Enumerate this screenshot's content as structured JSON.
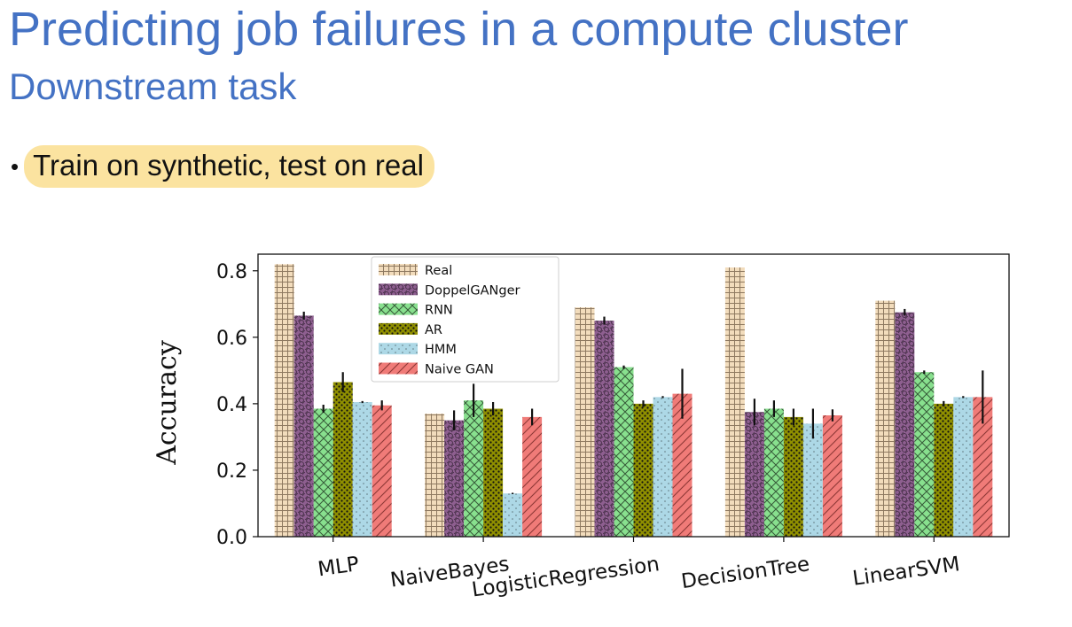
{
  "slide": {
    "title": "Predicting job failures in a compute cluster",
    "subtitle": "Downstream task",
    "bullet": "Train on synthetic, test on real"
  },
  "chart_data": {
    "type": "bar",
    "ylabel": "Accuracy",
    "xlabel": "",
    "ylim": [
      0.0,
      0.85
    ],
    "yticks": [
      "0.0",
      "0.2",
      "0.4",
      "0.6",
      "0.8"
    ],
    "legend_position": "top-left",
    "categories": [
      "MLP",
      "NaiveBayes",
      "LogisticRegression",
      "DecisionTree",
      "LinearSVM"
    ],
    "series": [
      {
        "name": "Real",
        "color": "#f2dcbc",
        "pattern": "grid",
        "values": [
          0.82,
          0.37,
          0.69,
          0.81,
          0.71
        ],
        "errors": [
          0,
          0,
          0,
          0,
          0
        ]
      },
      {
        "name": "DoppelGANger",
        "color": "#8e5f90",
        "pattern": "circles",
        "values": [
          0.665,
          0.35,
          0.65,
          0.375,
          0.675
        ],
        "errors": [
          0.012,
          0.03,
          0.012,
          0.04,
          0.01
        ]
      },
      {
        "name": "RNN",
        "color": "#88e08e",
        "pattern": "crosshatch",
        "values": [
          0.385,
          0.41,
          0.51,
          0.385,
          0.495
        ],
        "errors": [
          0.012,
          0.05,
          0.005,
          0.025,
          0.005
        ]
      },
      {
        "name": "AR",
        "color": "#8f8f00",
        "pattern": "dots-dark",
        "values": [
          0.465,
          0.385,
          0.4,
          0.36,
          0.4
        ],
        "errors": [
          0.03,
          0.02,
          0.01,
          0.025,
          0.008
        ]
      },
      {
        "name": "HMM",
        "color": "#add8e6",
        "pattern": "dots-light",
        "values": [
          0.405,
          0.13,
          0.42,
          0.34,
          0.42
        ],
        "errors": [
          0.003,
          0.002,
          0.003,
          0.045,
          0.003
        ]
      },
      {
        "name": "Naive GAN",
        "color": "#f07b78",
        "pattern": "diagonal",
        "values": [
          0.395,
          0.36,
          0.43,
          0.365,
          0.42
        ],
        "errors": [
          0.015,
          0.025,
          0.075,
          0.018,
          0.08
        ]
      }
    ]
  }
}
